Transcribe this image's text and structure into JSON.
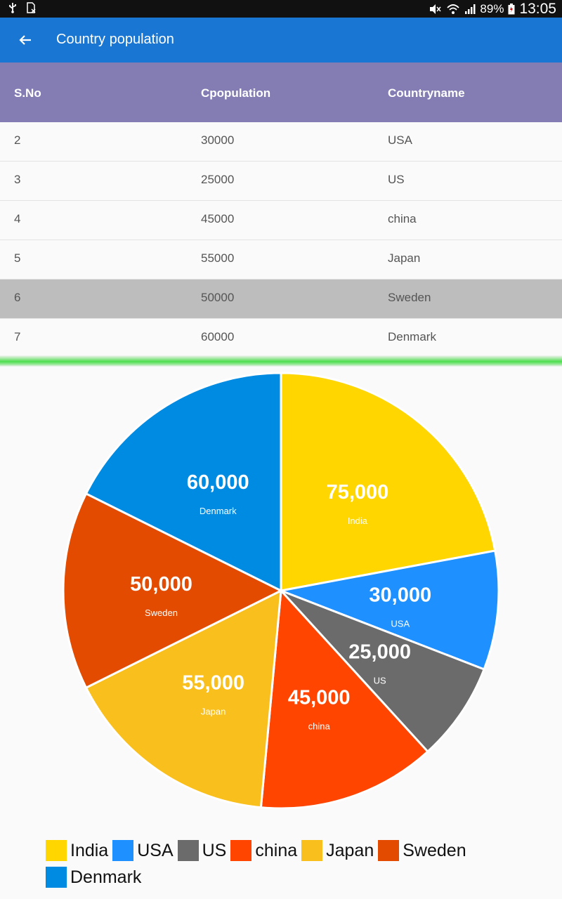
{
  "statusbar": {
    "battery": "89%",
    "time": "13:05"
  },
  "appbar": {
    "title": "Country population"
  },
  "table": {
    "headers": [
      "S.No",
      "Cpopulation",
      "Countryname"
    ],
    "rows": [
      {
        "sno": "2",
        "pop": "30000",
        "name": "USA",
        "selected": false
      },
      {
        "sno": "3",
        "pop": "25000",
        "name": "US",
        "selected": false
      },
      {
        "sno": "4",
        "pop": "45000",
        "name": "china",
        "selected": false
      },
      {
        "sno": "5",
        "pop": "55000",
        "name": "Japan",
        "selected": false
      },
      {
        "sno": "6",
        "pop": "50000",
        "name": "Sweden",
        "selected": true
      },
      {
        "sno": "7",
        "pop": "60000",
        "name": "Denmark",
        "selected": false
      }
    ]
  },
  "chart_data": {
    "type": "pie",
    "categories": [
      "India",
      "USA",
      "US",
      "china",
      "Japan",
      "Sweden",
      "Denmark"
    ],
    "values": [
      75000,
      30000,
      25000,
      45000,
      55000,
      50000,
      60000
    ],
    "value_labels": [
      "75,000",
      "30,000",
      "25,000",
      "45,000",
      "55,000",
      "50,000",
      "60,000"
    ],
    "colors": [
      "#ffd600",
      "#1e90ff",
      "#6b6b6b",
      "#ff4500",
      "#f9bf1c",
      "#e34b00",
      "#008be3"
    ],
    "legend_placement": "bottom",
    "start_angle_deg": 0,
    "direction": "clockwise"
  }
}
